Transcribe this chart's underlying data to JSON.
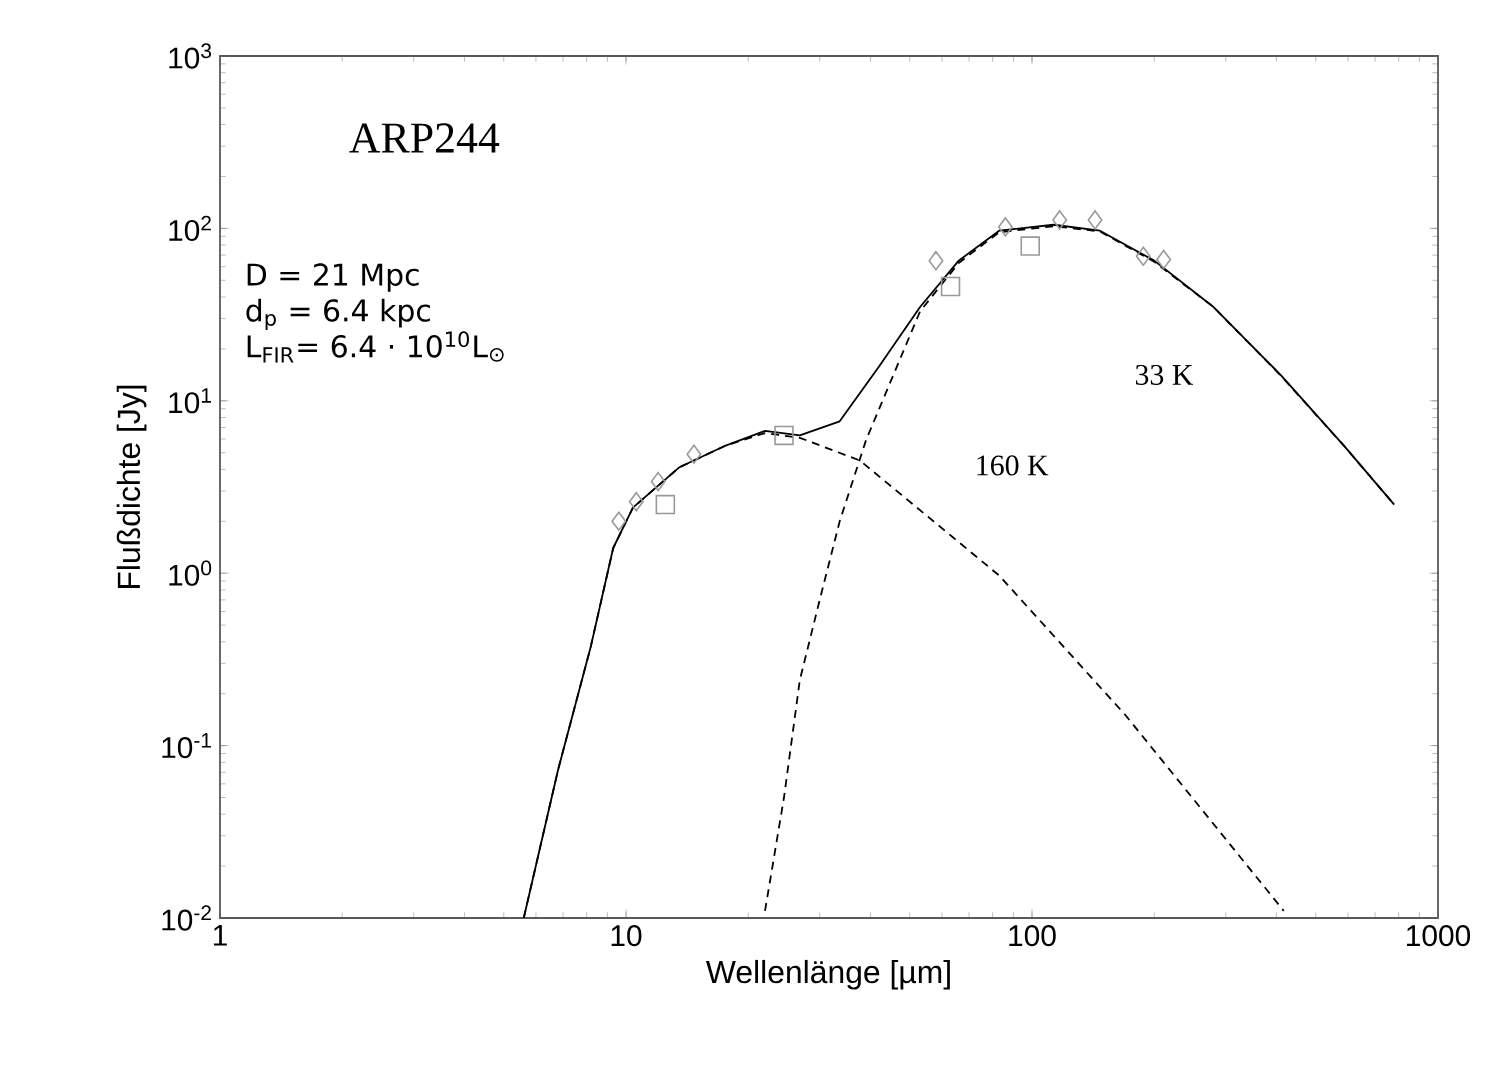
{
  "chart_data": {
    "type": "line",
    "title": "ARP244",
    "xlabel": "Wellenlänge [µm]",
    "ylabel": "Flußdichte [Jy]",
    "log": "xy",
    "grid": false,
    "xlim": [
      1,
      1000
    ],
    "ylim": [
      0.01,
      1000
    ],
    "xticks": [
      1,
      10,
      100,
      1000
    ],
    "yticks": [
      {
        "value": 0.01,
        "label": "10$^{-2}$"
      },
      {
        "value": 0.1,
        "label": "10$^{-1}$"
      },
      {
        "value": 1,
        "label": "10$^{0}$"
      },
      {
        "value": 10,
        "label": "10$^{1}$"
      },
      {
        "value": 100,
        "label": "10$^{2}$"
      },
      {
        "value": 1000,
        "label": "10$^{3}$"
      }
    ],
    "annotations": [
      "D = 21 Mpc",
      "d$_{p}$ = 6.4 kpc",
      "L$_{FIR}$= 6.4 · 10$^{10}$L$_{⊙}$",
      "33  K",
      "160  K"
    ],
    "series": [
      {
        "line_style": "solid",
        "color": "#000000",
        "x": [
          5.6,
          6.8,
          8.2,
          9.3,
          10.4,
          13.5,
          17.6,
          22,
          26.8,
          33.6,
          42,
          53,
          66,
          83,
          113,
          147,
          200,
          280,
          410,
          590,
          780
        ],
        "values": [
          0.01,
          0.072,
          0.38,
          1.4,
          2.4,
          4.1,
          5.5,
          6.7,
          6.3,
          7.6,
          15.8,
          35,
          65,
          97,
          105,
          97,
          65,
          35,
          14.1,
          5.4,
          2.5
        ]
      },
      {
        "line_style": "dashed",
        "color": "#000000",
        "x": [
          5.6,
          6.8,
          8.2,
          9.3,
          10.4,
          13.5,
          17.6,
          22,
          26.8,
          37.7,
          83,
          170,
          417
        ],
        "values": [
          0.01,
          0.072,
          0.38,
          1.4,
          2.4,
          4.1,
          5.5,
          6.5,
          6.1,
          4.5,
          0.97,
          0.15,
          0.011
        ]
      },
      {
        "line_style": "dashed",
        "color": "#000000",
        "x": [
          22,
          24.5,
          26.8,
          30,
          33.6,
          39,
          45.6,
          53,
          66,
          83,
          113,
          147,
          200,
          280,
          410,
          590,
          780
        ],
        "values": [
          0.011,
          0.05,
          0.24,
          0.7,
          2.0,
          5.9,
          14.2,
          33,
          63,
          95,
          103,
          96,
          64,
          35,
          14,
          5.4,
          2.5
        ]
      },
      {
        "type": "scatter",
        "marker": "diamond",
        "color": "#999999",
        "x": [
          9.6,
          10.6,
          12.0,
          14.7,
          58,
          86,
          117,
          143,
          188,
          211
        ],
        "values": [
          2.0,
          2.6,
          3.4,
          4.9,
          65,
          102,
          112,
          112,
          69,
          66
        ]
      },
      {
        "type": "scatter",
        "marker": "square",
        "color": "#999999",
        "x": [
          12.5,
          24.5,
          63,
          99
        ],
        "values": [
          2.5,
          6.3,
          46,
          79
        ]
      }
    ]
  }
}
